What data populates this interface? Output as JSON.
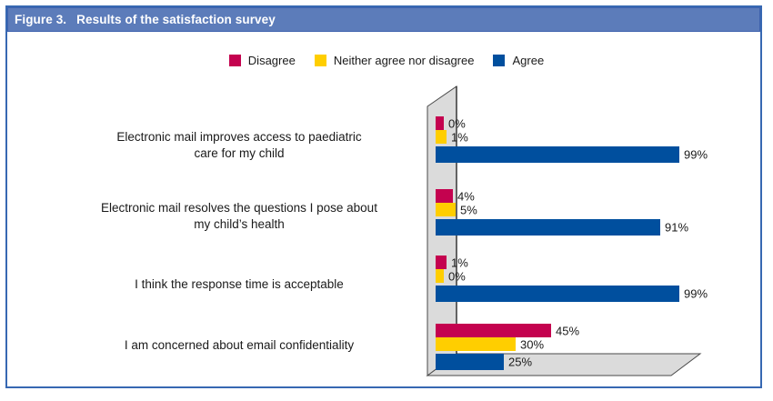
{
  "figure": {
    "label": "Figure 3.",
    "title": "Results of the satisfaction survey"
  },
  "colors": {
    "title_bar": "#5C7CBA",
    "title_bar_border": "#3E62AD",
    "frame_border": "#3768B2",
    "wall_fill": "#DBDBDB",
    "wall_stroke": "#4A4A4A",
    "axis": "#1A1A1A",
    "text": "#1A1A1A",
    "disagree": "#C4024F",
    "neither": "#FFCE00",
    "agree": "#004F9E"
  },
  "chart_data": {
    "type": "bar",
    "orientation": "horizontal",
    "style": "3d-wall-and-floor",
    "grid": false,
    "legend_position": "top-center",
    "value_suffix": "%",
    "xlim": [
      0,
      100
    ],
    "categories": [
      "Electronic mail improves access to paediatric\ncare for my child",
      "Electronic mail resolves the questions I pose about\nmy child’s health",
      "I think the response time is acceptable",
      "I am concerned about email confidentiality"
    ],
    "series": [
      {
        "name": "Disagree",
        "color": "#C4024F",
        "values": [
          0,
          4,
          1,
          45
        ]
      },
      {
        "name": "Neither agree nor disagree",
        "color": "#FFCE00",
        "values": [
          1,
          5,
          0,
          30
        ]
      },
      {
        "name": "Agree",
        "color": "#004F9E",
        "values": [
          99,
          91,
          99,
          25
        ]
      }
    ]
  }
}
